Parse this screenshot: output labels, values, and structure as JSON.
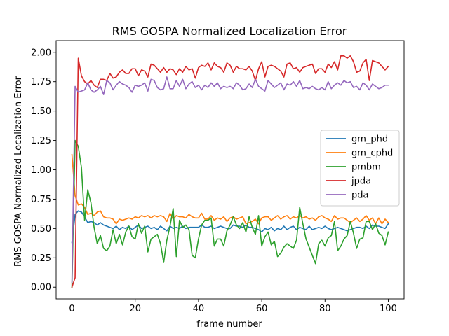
{
  "chart_data": {
    "type": "line",
    "title": "RMS GOSPA Normalized Localization Error",
    "xlabel": "frame number",
    "ylabel": "RMS GOSPA Normalized Localization Error",
    "xlim": [
      -5,
      105
    ],
    "ylim": [
      -0.1,
      2.1
    ],
    "xticks": [
      0,
      20,
      40,
      60,
      80,
      100
    ],
    "yticks": [
      0.0,
      0.25,
      0.5,
      0.75,
      1.0,
      1.25,
      1.5,
      1.75,
      2.0
    ],
    "xtick_labels": [
      "0",
      "20",
      "40",
      "60",
      "80",
      "100"
    ],
    "ytick_labels": [
      "0.00",
      "0.25",
      "0.50",
      "0.75",
      "1.00",
      "1.25",
      "1.50",
      "1.75",
      "2.00"
    ],
    "grid": false,
    "legend_position": "center-right",
    "x": [
      0,
      1,
      2,
      3,
      4,
      5,
      6,
      7,
      8,
      9,
      10,
      11,
      12,
      13,
      14,
      15,
      16,
      17,
      18,
      19,
      20,
      21,
      22,
      23,
      24,
      25,
      26,
      27,
      28,
      29,
      30,
      31,
      32,
      33,
      34,
      35,
      36,
      37,
      38,
      39,
      40,
      41,
      42,
      43,
      44,
      45,
      46,
      47,
      48,
      49,
      50,
      51,
      52,
      53,
      54,
      55,
      56,
      57,
      58,
      59,
      60,
      61,
      62,
      63,
      64,
      65,
      66,
      67,
      68,
      69,
      70,
      71,
      72,
      73,
      74,
      75,
      76,
      77,
      78,
      79,
      80,
      81,
      82,
      83,
      84,
      85,
      86,
      87,
      88,
      89,
      90,
      91,
      92,
      93,
      94,
      95,
      96,
      97,
      98,
      99,
      100
    ],
    "series": [
      {
        "name": "gm_phd",
        "color": "#1f77b4",
        "values": [
          0.38,
          0.62,
          0.65,
          0.64,
          0.6,
          0.55,
          0.56,
          0.55,
          0.53,
          0.55,
          0.53,
          0.52,
          0.51,
          0.5,
          0.52,
          0.49,
          0.51,
          0.5,
          0.52,
          0.49,
          0.51,
          0.53,
          0.5,
          0.51,
          0.52,
          0.5,
          0.51,
          0.49,
          0.52,
          0.5,
          0.48,
          0.52,
          0.5,
          0.51,
          0.5,
          0.52,
          0.5,
          0.51,
          0.51,
          0.51,
          0.51,
          0.53,
          0.51,
          0.51,
          0.52,
          0.5,
          0.51,
          0.52,
          0.51,
          0.5,
          0.5,
          0.53,
          0.52,
          0.52,
          0.51,
          0.53,
          0.51,
          0.51,
          0.5,
          0.49,
          0.47,
          0.5,
          0.49,
          0.51,
          0.48,
          0.5,
          0.49,
          0.52,
          0.49,
          0.51,
          0.52,
          0.49,
          0.51,
          0.5,
          0.49,
          0.52,
          0.49,
          0.5,
          0.51,
          0.5,
          0.52,
          0.5,
          0.49,
          0.5,
          0.51,
          0.5,
          0.49,
          0.48,
          0.49,
          0.5,
          0.51,
          0.51,
          0.5,
          0.52,
          0.5,
          0.53,
          0.52,
          0.52,
          0.51,
          0.5,
          0.54
        ]
      },
      {
        "name": "gm_cphd",
        "color": "#ff7f0e",
        "values": [
          1.13,
          0.78,
          0.7,
          0.71,
          0.68,
          0.62,
          0.63,
          0.61,
          0.64,
          0.65,
          0.6,
          0.59,
          0.59,
          0.58,
          0.54,
          0.58,
          0.57,
          0.58,
          0.59,
          0.58,
          0.6,
          0.59,
          0.61,
          0.6,
          0.61,
          0.59,
          0.61,
          0.6,
          0.61,
          0.6,
          0.56,
          0.63,
          0.58,
          0.61,
          0.6,
          0.6,
          0.59,
          0.62,
          0.6,
          0.59,
          0.59,
          0.63,
          0.58,
          0.58,
          0.61,
          0.57,
          0.59,
          0.58,
          0.6,
          0.56,
          0.59,
          0.6,
          0.58,
          0.59,
          0.6,
          0.54,
          0.55,
          0.56,
          0.58,
          0.54,
          0.59,
          0.6,
          0.6,
          0.57,
          0.59,
          0.61,
          0.58,
          0.6,
          0.61,
          0.58,
          0.6,
          0.59,
          0.61,
          0.59,
          0.6,
          0.58,
          0.59,
          0.57,
          0.6,
          0.61,
          0.59,
          0.58,
          0.56,
          0.61,
          0.58,
          0.59,
          0.59,
          0.57,
          0.55,
          0.57,
          0.59,
          0.56,
          0.58,
          0.61,
          0.57,
          0.59,
          0.54,
          0.59,
          0.54,
          0.58,
          0.55
        ]
      },
      {
        "name": "pmbm",
        "color": "#2ca02c",
        "values": [
          0.0,
          1.25,
          1.2,
          1.02,
          0.57,
          0.83,
          0.72,
          0.51,
          0.37,
          0.44,
          0.33,
          0.31,
          0.35,
          0.49,
          0.37,
          0.45,
          0.36,
          0.47,
          0.52,
          0.43,
          0.41,
          0.54,
          0.46,
          0.52,
          0.3,
          0.41,
          0.43,
          0.45,
          0.37,
          0.21,
          0.4,
          0.52,
          0.67,
          0.26,
          0.57,
          0.51,
          0.53,
          0.49,
          0.27,
          0.25,
          0.41,
          0.53,
          0.57,
          0.57,
          0.59,
          0.35,
          0.41,
          0.41,
          0.35,
          0.48,
          0.53,
          0.6,
          0.53,
          0.5,
          0.55,
          0.47,
          0.6,
          0.51,
          0.45,
          0.61,
          0.35,
          0.43,
          0.47,
          0.36,
          0.39,
          0.26,
          0.29,
          0.34,
          0.37,
          0.35,
          0.33,
          0.4,
          0.68,
          0.54,
          0.41,
          0.34,
          0.27,
          0.2,
          0.37,
          0.4,
          0.35,
          0.42,
          0.44,
          0.56,
          0.31,
          0.35,
          0.41,
          0.44,
          0.56,
          0.46,
          0.33,
          0.41,
          0.42,
          0.56,
          0.56,
          0.49,
          0.54,
          0.46,
          0.44,
          0.36,
          0.47
        ]
      },
      {
        "name": "jpda",
        "color": "#d62728",
        "values": [
          0.0,
          0.08,
          1.95,
          1.8,
          1.75,
          1.73,
          1.76,
          1.72,
          1.7,
          1.77,
          1.77,
          1.76,
          1.82,
          1.78,
          1.79,
          1.83,
          1.85,
          1.82,
          1.82,
          1.86,
          1.86,
          1.8,
          1.85,
          1.84,
          1.79,
          1.9,
          1.89,
          1.86,
          1.83,
          1.87,
          1.83,
          1.86,
          1.85,
          1.81,
          1.86,
          1.83,
          1.88,
          1.85,
          1.86,
          1.78,
          1.87,
          1.89,
          1.88,
          1.91,
          1.85,
          1.91,
          1.88,
          1.87,
          1.83,
          1.91,
          1.89,
          1.83,
          1.88,
          1.86,
          1.86,
          1.85,
          1.88,
          1.84,
          1.76,
          1.86,
          1.92,
          1.79,
          1.88,
          1.89,
          1.88,
          1.86,
          1.84,
          1.79,
          1.9,
          1.91,
          1.86,
          1.87,
          1.83,
          1.87,
          1.88,
          1.89,
          1.9,
          1.82,
          1.86,
          1.86,
          1.83,
          1.9,
          1.87,
          1.92,
          1.85,
          1.97,
          1.97,
          1.95,
          1.97,
          1.92,
          1.83,
          1.84,
          1.91,
          1.94,
          1.76,
          1.93,
          1.92,
          1.91,
          1.88,
          1.85,
          1.88
        ]
      },
      {
        "name": "pda",
        "color": "#9467bd",
        "values": [
          0.04,
          1.71,
          1.66,
          1.67,
          1.68,
          1.74,
          1.68,
          1.66,
          1.68,
          1.71,
          1.64,
          1.76,
          1.74,
          1.68,
          1.72,
          1.75,
          1.73,
          1.72,
          1.7,
          1.66,
          1.72,
          1.71,
          1.72,
          1.74,
          1.67,
          1.77,
          1.76,
          1.7,
          1.68,
          1.69,
          1.79,
          1.69,
          1.69,
          1.76,
          1.71,
          1.77,
          1.69,
          1.73,
          1.75,
          1.7,
          1.72,
          1.68,
          1.72,
          1.7,
          1.74,
          1.71,
          1.74,
          1.69,
          1.71,
          1.7,
          1.71,
          1.69,
          1.74,
          1.72,
          1.68,
          1.69,
          1.73,
          1.7,
          1.77,
          1.71,
          1.69,
          1.67,
          1.76,
          1.73,
          1.7,
          1.72,
          1.74,
          1.68,
          1.73,
          1.72,
          1.75,
          1.71,
          1.76,
          1.69,
          1.7,
          1.69,
          1.71,
          1.69,
          1.68,
          1.7,
          1.68,
          1.75,
          1.69,
          1.72,
          1.74,
          1.72,
          1.76,
          1.74,
          1.75,
          1.7,
          1.71,
          1.68,
          1.74,
          1.72,
          1.68,
          1.73,
          1.71,
          1.69,
          1.7,
          1.72,
          1.72
        ]
      }
    ]
  }
}
